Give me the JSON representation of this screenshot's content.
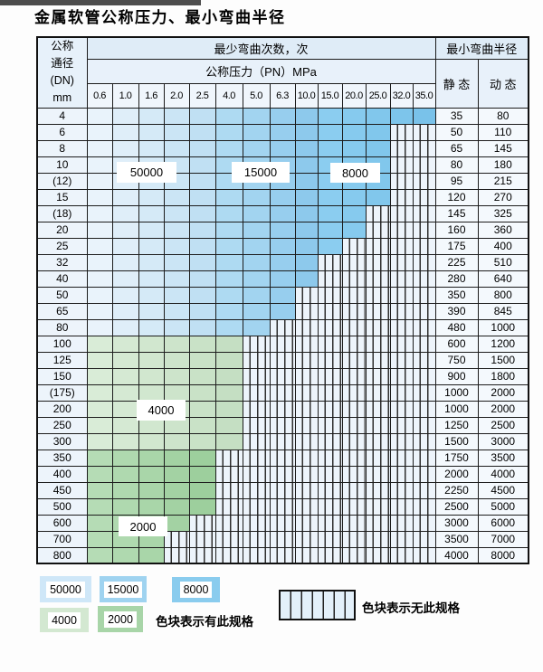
{
  "title": "金属软管公称压力、最小弯曲半径",
  "table": {
    "header": {
      "dn_lines": [
        "公称",
        "通径",
        "(DN)",
        "mm"
      ],
      "cycles_label": "最少弯曲次数，次",
      "pressure_label": "公称压力（PN）MPa",
      "radius_label": "最小弯曲半径",
      "static_label": "静 态",
      "dynamic_label": "动 态",
      "pressures": [
        "0.6",
        "1.0",
        "1.6",
        "2.0",
        "2.5",
        "4.0",
        "5.0",
        "6.3",
        "10.0",
        "15.0",
        "20.0",
        "25.0",
        "32.0",
        "35.0"
      ]
    },
    "cycle_bands": [
      {
        "cycles": "50000",
        "pressure_range": [
          "0.6",
          "2.5"
        ]
      },
      {
        "cycles": "15000",
        "pressure_range": [
          "4.0",
          "10.0"
        ]
      },
      {
        "cycles": "8000",
        "pressure_range": [
          "15.0",
          "35.0"
        ]
      }
    ],
    "rows": [
      {
        "dn": "4",
        "group": "blue",
        "max_pn": "35.0",
        "static": "35",
        "dynamic": "80"
      },
      {
        "dn": "6",
        "group": "blue",
        "max_pn": "25.0",
        "static": "50",
        "dynamic": "110"
      },
      {
        "dn": "8",
        "group": "blue",
        "max_pn": "25.0",
        "static": "65",
        "dynamic": "145"
      },
      {
        "dn": "10",
        "group": "blue",
        "max_pn": "25.0",
        "static": "80",
        "dynamic": "180"
      },
      {
        "dn": "(12)",
        "group": "blue",
        "max_pn": "25.0",
        "static": "95",
        "dynamic": "215"
      },
      {
        "dn": "15",
        "group": "blue",
        "max_pn": "25.0",
        "static": "120",
        "dynamic": "270"
      },
      {
        "dn": "(18)",
        "group": "blue",
        "max_pn": "20.0",
        "static": "145",
        "dynamic": "325"
      },
      {
        "dn": "20",
        "group": "blue",
        "max_pn": "20.0",
        "static": "160",
        "dynamic": "360"
      },
      {
        "dn": "25",
        "group": "blue",
        "max_pn": "15.0",
        "static": "175",
        "dynamic": "400"
      },
      {
        "dn": "32",
        "group": "blue",
        "max_pn": "10.0",
        "static": "225",
        "dynamic": "510"
      },
      {
        "dn": "40",
        "group": "blue",
        "max_pn": "10.0",
        "static": "280",
        "dynamic": "640"
      },
      {
        "dn": "50",
        "group": "blue",
        "max_pn": "6.3",
        "static": "350",
        "dynamic": "800"
      },
      {
        "dn": "65",
        "group": "blue",
        "max_pn": "6.3",
        "static": "390",
        "dynamic": "845"
      },
      {
        "dn": "80",
        "group": "blue",
        "max_pn": "5.0",
        "static": "480",
        "dynamic": "1000"
      },
      {
        "dn": "100",
        "group": "4000",
        "max_pn": "4.0",
        "static": "600",
        "dynamic": "1200"
      },
      {
        "dn": "125",
        "group": "4000",
        "max_pn": "4.0",
        "static": "750",
        "dynamic": "1500"
      },
      {
        "dn": "150",
        "group": "4000",
        "max_pn": "4.0",
        "static": "900",
        "dynamic": "1800"
      },
      {
        "dn": "(175)",
        "group": "4000",
        "max_pn": "4.0",
        "static": "1000",
        "dynamic": "2000"
      },
      {
        "dn": "200",
        "group": "4000",
        "max_pn": "4.0",
        "static": "1000",
        "dynamic": "2000"
      },
      {
        "dn": "250",
        "group": "4000",
        "max_pn": "4.0",
        "static": "1250",
        "dynamic": "2500"
      },
      {
        "dn": "300",
        "group": "4000",
        "max_pn": "4.0",
        "static": "1500",
        "dynamic": "3000"
      },
      {
        "dn": "350",
        "group": "2000",
        "max_pn": "2.5",
        "static": "1750",
        "dynamic": "3500"
      },
      {
        "dn": "400",
        "group": "2000",
        "max_pn": "2.5",
        "static": "2000",
        "dynamic": "4000"
      },
      {
        "dn": "450",
        "group": "2000",
        "max_pn": "2.5",
        "static": "2250",
        "dynamic": "4500"
      },
      {
        "dn": "500",
        "group": "2000",
        "max_pn": "2.5",
        "static": "2500",
        "dynamic": "5000"
      },
      {
        "dn": "600",
        "group": "2000",
        "max_pn": "2.0",
        "static": "3000",
        "dynamic": "6000"
      },
      {
        "dn": "700",
        "group": "2000",
        "max_pn": "1.6",
        "static": "3500",
        "dynamic": "7000"
      },
      {
        "dn": "800",
        "group": "2000",
        "max_pn": "1.6",
        "static": "4000",
        "dynamic": "8000"
      }
    ]
  },
  "overlay_labels": [
    "50000",
    "15000",
    "8000",
    "4000",
    "2000"
  ],
  "legend": {
    "swatches": [
      {
        "label": "50000",
        "color": "#cfe7f8"
      },
      {
        "label": "15000",
        "color": "#9fd3f0"
      },
      {
        "label": "8000",
        "color": "#8accee"
      },
      {
        "label": "4000",
        "color": "#d3e8d1"
      },
      {
        "label": "2000",
        "color": "#a8d5a8"
      }
    ],
    "available_text": "色块表示有此规格",
    "unavailable_text": "色块表示无此规格"
  },
  "colors": {
    "grid": "#1c1c1c",
    "header_bg": "#dfecf7",
    "subheader_bg": "#e8f1fa",
    "stripe_bg": "#edf4fb",
    "blue_50000": "#d5eaf7",
    "blue_15000": "#a0d3ef",
    "blue_8000": "#84c7ec",
    "green_4000": "#d1e6cf",
    "green_2000": "#aad6aa"
  }
}
